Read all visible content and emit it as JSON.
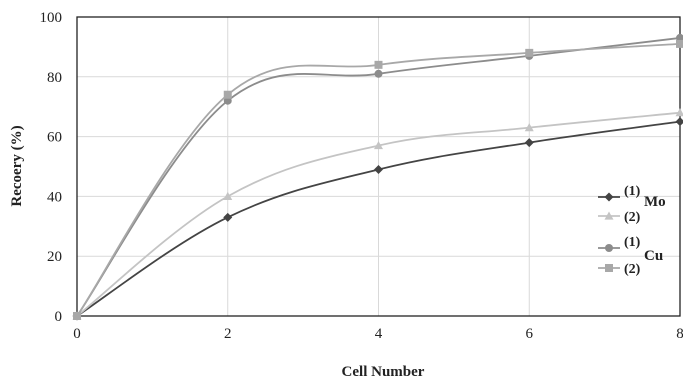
{
  "chart_data": {
    "type": "line",
    "title": "",
    "xlabel": "Cell Number",
    "ylabel": "Recoery (%)",
    "xlim": [
      0,
      8
    ],
    "ylim": [
      0,
      100
    ],
    "xticks": [
      0,
      2,
      4,
      6,
      8
    ],
    "yticks": [
      0,
      20,
      40,
      60,
      80,
      100
    ],
    "grid": "vertical",
    "legend_position": "right",
    "series": [
      {
        "name": "(1)",
        "group": "Mo",
        "marker": "diamond",
        "color": "#444444",
        "x": [
          0,
          2,
          4,
          6,
          8
        ],
        "y": [
          0,
          33,
          49,
          58,
          65
        ]
      },
      {
        "name": "(2)",
        "group": "Mo",
        "marker": "triangle",
        "color": "#c4c4c4",
        "x": [
          0,
          2,
          4,
          6,
          8
        ],
        "y": [
          0,
          40,
          57,
          63,
          68
        ]
      },
      {
        "name": "(1)",
        "group": "Cu",
        "marker": "circle",
        "color": "#8c8c8c",
        "x": [
          0,
          2,
          4,
          6,
          8
        ],
        "y": [
          0,
          72,
          81,
          87,
          93
        ]
      },
      {
        "name": "(2)",
        "group": "Cu",
        "marker": "square",
        "color": "#a8a8a8",
        "x": [
          0,
          2,
          4,
          6,
          8
        ],
        "y": [
          0,
          74,
          84,
          88,
          91
        ]
      }
    ],
    "legend_groups": [
      "Mo",
      "Cu"
    ]
  }
}
